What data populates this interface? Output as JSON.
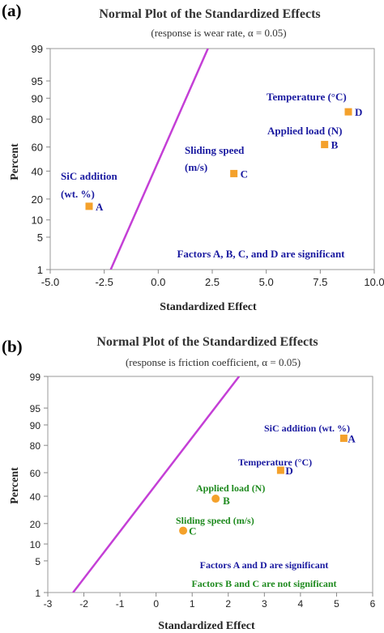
{
  "chart_data": [
    {
      "type": "scatter",
      "panel_label": "(a)",
      "title": "Normal Plot of the Standardized Effects",
      "subtitle": "(response is wear rate, α = 0.05)",
      "xlabel": "Standardized Effect",
      "ylabel": "Percent",
      "xlim": [
        -5.0,
        10.0
      ],
      "ylim": [
        1,
        99
      ],
      "y_scale": "normal-probability",
      "x_ticks": [
        "-5.0",
        "-2.5",
        "0.0",
        "2.5",
        "5.0",
        "7.5",
        "10.0"
      ],
      "x_tick_values": [
        -5.0,
        -2.5,
        0.0,
        2.5,
        5.0,
        7.5,
        10.0
      ],
      "y_ticks": [
        "1",
        "5",
        "10",
        "20",
        "40",
        "60",
        "80",
        "90",
        "95",
        "99"
      ],
      "y_tick_values": [
        1,
        5,
        10,
        20,
        40,
        60,
        80,
        90,
        95,
        99
      ],
      "reference_line": {
        "points": [
          [
            -2.2,
            1
          ],
          [
            2.3,
            99
          ]
        ],
        "color": "#c43fd6"
      },
      "points": [
        {
          "factor": "A",
          "name": "SiC addition",
          "name2": "(wt. %)",
          "x": -3.2,
          "y": 16,
          "marker": "square",
          "color": "#f4a12b",
          "label_color": "#1a1aa0"
        },
        {
          "factor": "C",
          "name": "Sliding speed",
          "name2": "(m/s)",
          "x": 3.5,
          "y": 38,
          "marker": "square",
          "color": "#f4a12b",
          "label_color": "#1a1aa0"
        },
        {
          "factor": "B",
          "name": "Applied load (N)",
          "name2": "",
          "x": 7.7,
          "y": 62,
          "marker": "square",
          "color": "#f4a12b",
          "label_color": "#1a1aa0"
        },
        {
          "factor": "D",
          "name": "Temperature (°C)",
          "name2": "",
          "x": 8.8,
          "y": 84,
          "marker": "square",
          "color": "#f4a12b",
          "label_color": "#1a1aa0"
        }
      ],
      "notes": [
        {
          "text": "Factors A, B, C, and D are significant",
          "color": "#1a1aa0"
        }
      ]
    },
    {
      "type": "scatter",
      "panel_label": "(b)",
      "title": "Normal Plot of the Standardized Effects",
      "subtitle": "(response is friction coefficient, α = 0.05)",
      "xlabel": "Standardized Effect",
      "ylabel": "Percent",
      "xlim": [
        -3,
        6
      ],
      "ylim": [
        1,
        99
      ],
      "y_scale": "normal-probability",
      "x_ticks": [
        "-3",
        "-2",
        "-1",
        "0",
        "1",
        "2",
        "3",
        "4",
        "5",
        "6"
      ],
      "x_tick_values": [
        -3,
        -2,
        -1,
        0,
        1,
        2,
        3,
        4,
        5,
        6
      ],
      "y_ticks": [
        "1",
        "5",
        "10",
        "20",
        "40",
        "60",
        "80",
        "90",
        "95",
        "99"
      ],
      "y_tick_values": [
        1,
        5,
        10,
        20,
        40,
        60,
        80,
        90,
        95,
        99
      ],
      "reference_line": {
        "points": [
          [
            -2.3,
            1
          ],
          [
            2.3,
            99
          ]
        ],
        "color": "#c43fd6"
      },
      "points": [
        {
          "factor": "C",
          "name": "Sliding speed (m/s)",
          "x": 0.75,
          "y": 16,
          "marker": "circle",
          "color": "#f4a12b",
          "label_color": "#1e8a1e"
        },
        {
          "factor": "B",
          "name": "Applied load (N)",
          "x": 1.65,
          "y": 38,
          "marker": "circle",
          "color": "#f4a12b",
          "label_color": "#1e8a1e"
        },
        {
          "factor": "D",
          "name": "Temperature (°C)",
          "x": 3.45,
          "y": 62,
          "marker": "square",
          "color": "#f4a12b",
          "label_color": "#1a1aa0"
        },
        {
          "factor": "A",
          "name": "SiC addition (wt. %)",
          "x": 5.2,
          "y": 84,
          "marker": "square",
          "color": "#f4a12b",
          "label_color": "#1a1aa0"
        }
      ],
      "notes": [
        {
          "text": "Factors A and D are significant",
          "color": "#1a1aa0"
        },
        {
          "text": "Factors B and C are not significant",
          "color": "#1e8a1e"
        }
      ]
    }
  ]
}
